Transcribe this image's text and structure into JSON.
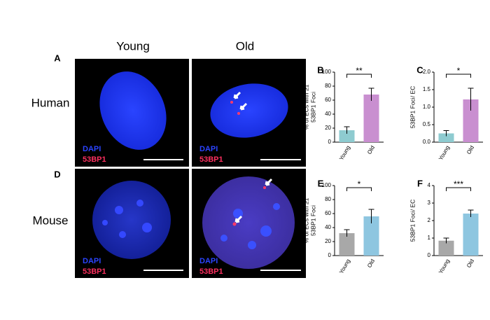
{
  "labels": {
    "columns": [
      "Young",
      "Old"
    ],
    "rows": [
      "Human",
      "Mouse"
    ],
    "panels": [
      "A",
      "D"
    ],
    "stains": [
      "DAPI",
      "53BP1"
    ]
  },
  "chart_data": [
    {
      "type": "bar",
      "panel": "B",
      "ylabel": [
        "% of ECs with ≥1",
        "53BP1 Foci"
      ],
      "categories": [
        "Young",
        "Old"
      ],
      "values": [
        17,
        68
      ],
      "errors": [
        5,
        9
      ],
      "colors": [
        "#8ecbd0",
        "#c98fd0"
      ],
      "ylim": [
        0,
        100
      ],
      "yticks": [
        0,
        20,
        40,
        60,
        80,
        100
      ],
      "significance": "**"
    },
    {
      "type": "bar",
      "panel": "C",
      "ylabel": [
        "53BP1 Foci/ EC"
      ],
      "categories": [
        "Young",
        "Old"
      ],
      "values": [
        0.25,
        1.22
      ],
      "errors": [
        0.08,
        0.32
      ],
      "colors": [
        "#8ecbd0",
        "#c98fd0"
      ],
      "ylim": [
        0,
        2
      ],
      "yticks": [
        {
          "value": 0,
          "label": "0.0"
        },
        0.5,
        {
          "value": 1,
          "label": "1.0"
        },
        1.5,
        {
          "value": 2,
          "label": "2.0"
        }
      ],
      "significance": "*"
    },
    {
      "type": "bar",
      "panel": "E",
      "ylabel": [
        "% of ECs with ≥1",
        "53BP1 Foci"
      ],
      "categories": [
        "Young",
        "Old"
      ],
      "values": [
        32,
        56
      ],
      "errors": [
        5,
        10
      ],
      "colors": [
        "#a8a8a8",
        "#8ec6e0"
      ],
      "ylim": [
        0,
        100
      ],
      "yticks": [
        0,
        20,
        40,
        60,
        80,
        100
      ],
      "significance": "*"
    },
    {
      "type": "bar",
      "panel": "F",
      "ylabel": [
        "53BP1 Foci/ EC"
      ],
      "categories": [
        "Young",
        "Old"
      ],
      "values": [
        0.85,
        2.4
      ],
      "errors": [
        0.15,
        0.2
      ],
      "colors": [
        "#a8a8a8",
        "#8ec6e0"
      ],
      "ylim": [
        0,
        4
      ],
      "yticks": [
        0,
        1,
        2,
        3,
        4
      ],
      "significance": "***"
    }
  ]
}
